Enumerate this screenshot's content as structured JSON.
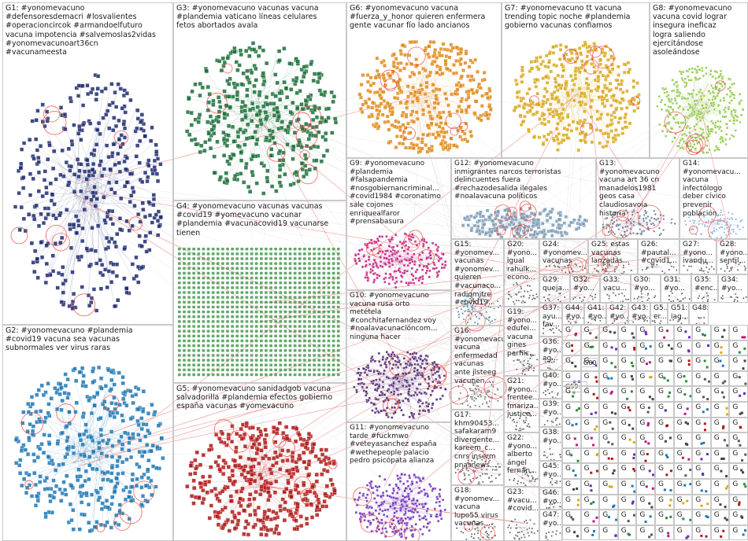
{
  "title": "",
  "colors": {
    "edge": "#c9c9c9",
    "edge_highlight": "#e8413a",
    "panel_border": "#c8c8c8"
  },
  "groups": [
    {
      "id": "G1",
      "label": "G1: #yonomevacuno\n#defensoresdemacri #losvalientes\n#operacioncircok #armandoelfuturo\nvacuna impotencia #salvemoslas2vidas\n#yonomevacunoart36cn\n#vacunameesta",
      "color": "#1f2a6e"
    },
    {
      "id": "G2",
      "label": "G2: #yonomevacuno #plandemia\n#covid19 vacuna sea vacunas\nsubnormales ver virus raras",
      "color": "#1f78b4"
    },
    {
      "id": "G3",
      "label": "G3: #yonomevacuno vacunas vacuna\n#plandemia vaticano líneas celulares\nfetos abortados avala",
      "color": "#1b6e3a"
    },
    {
      "id": "G4",
      "label": "G4: #yonomevacuno vacunas vacunas\n#covid19 #yomevacuno vacunar\n#plandemia #vacunacovid19 vacunarse\ntienen",
      "color": "#2e8b3a"
    },
    {
      "id": "G5",
      "label": "G5: #yonomevacuno sanidadgob vacuna\nsalvadorilla #plandemia efectos gobierno\nespaña vacunas #yomevacuno",
      "color": "#b01818"
    },
    {
      "id": "G6",
      "label": "G6: #yonomevacuno vacuna\n#fuerza_y_honor quieren enfermera\ngente vacunar fío lado ancianos",
      "color": "#e08a1a"
    },
    {
      "id": "G7",
      "label": "G7: #yonomevacuno tt vacuna\ntrending topic noche #plandemia\ngobierno vacunas confiamos",
      "color": "#d9a81a"
    },
    {
      "id": "G8",
      "label": "G8: #yonomevacuno\nvacuna covid lograr\ninsegura ineficaz\nlogra saliendo\nejercitándose\nasoleándose",
      "color": "#8cc63f"
    },
    {
      "id": "G9",
      "label": "G9: #yonomevacuno\n#plandemia\n#falsapandemia\n#nosgobiernancriminal...\n#covid1984 #coronatimo\nsale cojones\nenriquealfaror\n#prensabasura",
      "color": "#c0187a"
    },
    {
      "id": "G10",
      "label": "G10: #yonomevacuno\nvacuna rusa orto\nmetétela\n#conchitafernandez voy\n#noalavacunacióncom...\nninguna hacer",
      "color": "#4a1f6e"
    },
    {
      "id": "G11",
      "label": "G11: #yonomevacuno\ntarde #fuckmwo\n#veteyasanchez españa\n#wethepeople palacio\npedro psicópata alianza",
      "color": "#6a2bb5"
    },
    {
      "id": "G12",
      "label": "G12: #yonomevacuno\ninmigrantes narcos terroristas\ndelincuentes fuera\n#rechazodesalida ilegales\n#noalavacuna políticos",
      "color": "#7a9ab5"
    },
    {
      "id": "G13",
      "label": "G13: #yonomevacuno\nvacuna art 36 cn\nmanadelos1981\ngeos casa\nclaudiosavoia\nhistoria",
      "color": "#5a6a8a"
    },
    {
      "id": "G14",
      "label": "G14: #yonomevacu...\nvacuna\ninfectólogo\ndeber cívico\nprevenir\npoblación...",
      "color": "#6f9fd8"
    },
    {
      "id": "G15",
      "label": "G15: #yonomev...\nvacunas\n#yonomev...\nquieren\n#vacunaco...\nradiomitre\n#covid19...",
      "color": "#2b6f8a"
    },
    {
      "id": "G16",
      "label": "G16: #yonomevacuno\nvacuna\nenfermedad\nvacunas\nante jlsteeg\nvacunen...",
      "color": "#5a5a5a"
    },
    {
      "id": "G17",
      "label": "G17:\nkhm90453...\nsafakaram9\ndivergente...\nkareem_c...\ncnrs inserm\npnasnews...",
      "color": "#444444"
    },
    {
      "id": "G18",
      "label": "G18:\n#yonomev...\nvacuna\nlupo55 virus\nvacunas...",
      "color": "#444444"
    },
    {
      "id": "G19",
      "label": "G19:\n#yono...\nedufei...\nvacuna\ngines\nperfilc...",
      "color": "#444444"
    },
    {
      "id": "G20",
      "label": "G20:\n#yono...\nigual\nrahulk...\necono...",
      "color": "#444444"
    },
    {
      "id": "G21",
      "label": "G21:\n#yono...\nfrentee...\nfmariza...\njustice...",
      "color": "#444444"
    },
    {
      "id": "G22",
      "label": "G22:\n#yono...\nalberto\nángel\nfernán...",
      "color": "#444444"
    },
    {
      "id": "G23",
      "label": "G23:\n#vacu...\n#covid...",
      "color": "#444444"
    },
    {
      "id": "G24",
      "label": "G24:\n#yonomev...\nvacunas",
      "color": "#444444"
    },
    {
      "id": "G25",
      "label": "G25: estas\nvacunas\nlanzadas...",
      "color": "#444444"
    },
    {
      "id": "G26",
      "label": "G26:\n#pautal...\n#covid1...",
      "color": "#444444"
    },
    {
      "id": "G27",
      "label": "G27:\n#yono...\nivandu...",
      "color": "#444444"
    },
    {
      "id": "G28",
      "label": "G28:\n#yono...\nsentil...",
      "color": "#444444"
    },
    {
      "id": "G29",
      "label": "G29:\nqueja...",
      "color": "#444444"
    },
    {
      "id": "G32",
      "label": "G32:\n#yo...",
      "color": "#444444"
    },
    {
      "id": "G33",
      "label": "G33:\nvacu...",
      "color": "#444444"
    },
    {
      "id": "G30",
      "label": "G30:\n#yo...",
      "color": "#444444"
    },
    {
      "id": "G31",
      "label": "G31:\n#yo...",
      "color": "#444444"
    },
    {
      "id": "G35",
      "label": "G35:\n#enc...",
      "color": "#444444"
    },
    {
      "id": "G34",
      "label": "G34:\n#yo...",
      "color": "#444444"
    },
    {
      "id": "G37",
      "label": "G37:\nayu...\nfav...",
      "color": "#444444"
    },
    {
      "id": "G44",
      "label": "G44:\n#yo...",
      "color": "#444444"
    },
    {
      "id": "G41",
      "label": "G41:\n#yo...",
      "color": "#444444"
    },
    {
      "id": "G42",
      "label": "G42:\n#yo...",
      "color": "#444444"
    },
    {
      "id": "G43",
      "label": "G43:\n#yo...",
      "color": "#444444"
    },
    {
      "id": "G5b",
      "label": "G5...\ner...",
      "color": "#444444"
    },
    {
      "id": "G51",
      "label": "G51:\niag...",
      "color": "#444444"
    },
    {
      "id": "G48",
      "label": "G48:",
      "color": "#444444"
    },
    {
      "id": "G36",
      "label": "G36:\n#yo...\nag...",
      "color": "#444444"
    },
    {
      "id": "G40",
      "label": "G40:\n#yo...",
      "color": "#444444"
    },
    {
      "id": "G39",
      "label": "G39:\n#yo...",
      "color": "#444444"
    },
    {
      "id": "G38",
      "label": "G38:\n#yo...",
      "color": "#444444"
    },
    {
      "id": "G45",
      "label": "G45:\n#yo...",
      "color": "#444444"
    },
    {
      "id": "G46",
      "label": "G46:\n#yo...",
      "color": "#444444"
    },
    {
      "id": "G47",
      "label": "G47:\n#yo...",
      "color": "#444444"
    },
    {
      "id": "G59",
      "label": "G59:",
      "color": "#444444"
    },
    {
      "id": "G60",
      "label": "G60:",
      "color": "#444444"
    }
  ]
}
